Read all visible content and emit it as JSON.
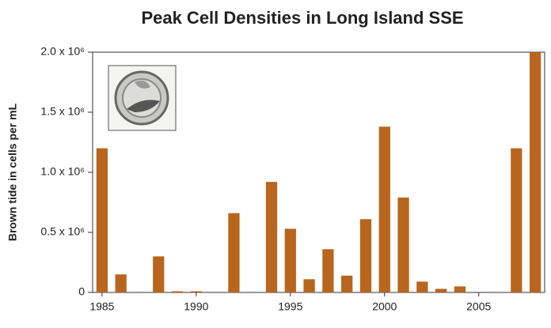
{
  "chart_data": {
    "type": "bar",
    "title": "Peak Cell Densities in Long Island SSE",
    "y_label": "Brown tide in cells per mL",
    "x": [
      1985,
      1986,
      1987,
      1988,
      1989,
      1990,
      1991,
      1992,
      1993,
      1994,
      1995,
      1996,
      1997,
      1998,
      1999,
      2000,
      2001,
      2002,
      2003,
      2004,
      2005,
      2006,
      2007,
      2008
    ],
    "values": [
      1200000,
      150000,
      0,
      300000,
      10000,
      10000,
      0,
      660000,
      0,
      920000,
      530000,
      110000,
      360000,
      140000,
      610000,
      1380000,
      790000,
      90000,
      30000,
      50000,
      0,
      0,
      1200000,
      2000000
    ],
    "color": "#b8661e",
    "xlim": [
      1984.5,
      2008.5
    ],
    "xticks": [
      1985,
      1990,
      1995,
      2000,
      2005
    ],
    "ylim": [
      0,
      2000000
    ],
    "yticks": [
      0,
      {
        "value": 500000,
        "label": "0.5 x 10⁶"
      },
      {
        "value": 1000000,
        "label": "1.0 x 10⁶"
      },
      {
        "value": 1500000,
        "label": "1.5 x 10⁶"
      },
      {
        "value": 2000000,
        "label": "2.0 x 10⁶"
      }
    ],
    "grid": false
  }
}
